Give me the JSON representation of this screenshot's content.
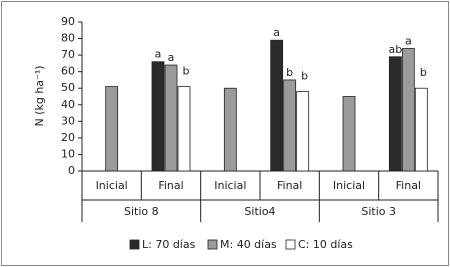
{
  "chart_data": {
    "type": "bar",
    "y_label": "N (kg ha⁻¹)",
    "categories": [
      "Inicial",
      "Final",
      "Inicial",
      "Final",
      "Inicial",
      "Final"
    ],
    "groups": [
      {
        "name": "Sitio 8",
        "span": 2
      },
      {
        "name": "Sitio4",
        "span": 2
      },
      {
        "name": "Sitio 3",
        "span": 2
      }
    ],
    "series": [
      {
        "name": "L: 70 días",
        "color": "#2b2b2b",
        "values": [
          null,
          66,
          null,
          79,
          null,
          69
        ],
        "labels": [
          null,
          "a",
          null,
          "a",
          null,
          "ab"
        ]
      },
      {
        "name": "M: 40 días",
        "color": "#9b9b9b",
        "values": [
          51,
          64,
          50,
          55,
          45,
          74
        ],
        "labels": [
          null,
          "a",
          null,
          "b",
          null,
          "a"
        ]
      },
      {
        "name": "C: 10 días",
        "color": "#ffffff",
        "values": [
          null,
          51,
          null,
          48,
          null,
          50
        ],
        "labels": [
          null,
          "b",
          null,
          "b",
          null,
          "b"
        ]
      }
    ],
    "ylim": [
      0,
      90
    ],
    "yticks": [
      0,
      10,
      20,
      30,
      40,
      50,
      60,
      70,
      80,
      90
    ],
    "legend": "bottom"
  }
}
